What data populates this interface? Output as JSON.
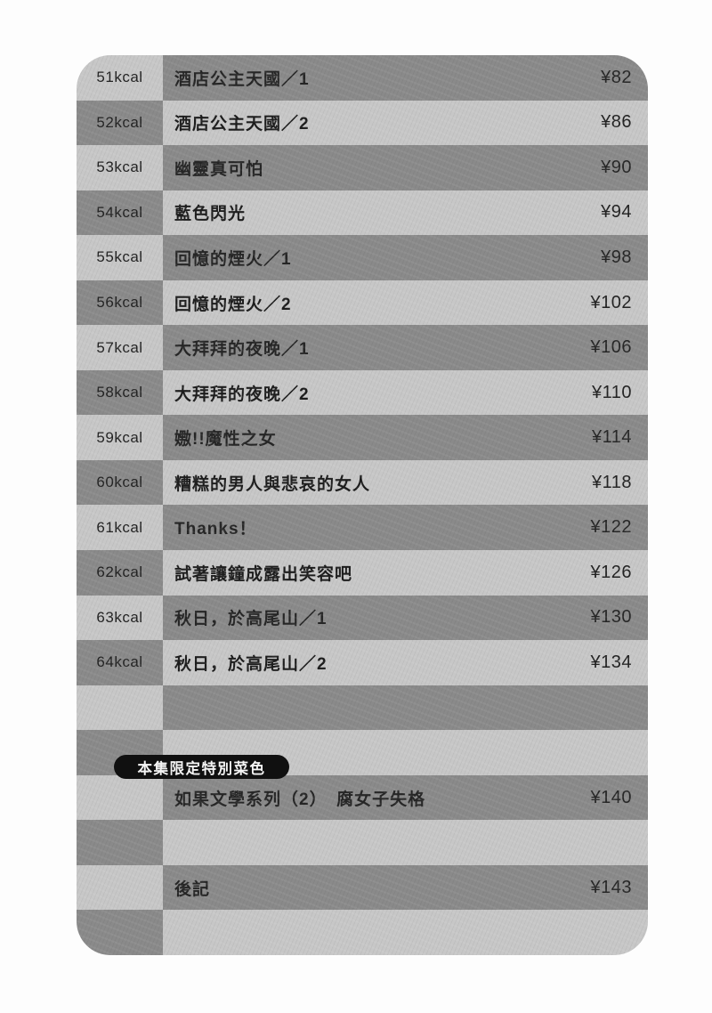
{
  "colors": {
    "stripe_dark": "#8a8a8a",
    "stripe_light": "#c7c7c7",
    "badge_bg": "#101010",
    "badge_text": "#f4f4f4",
    "text": "#1d1d1d",
    "page_bg": "#fdfdfd"
  },
  "badge": {
    "label": "本集限定特別菜色"
  },
  "toc": {
    "rows": [
      {
        "kcal": "51kcal",
        "title": "酒店公主天國／1",
        "page": "¥82"
      },
      {
        "kcal": "52kcal",
        "title": "酒店公主天國／2",
        "page": "¥86"
      },
      {
        "kcal": "53kcal",
        "title": "幽靈真可怕",
        "page": "¥90"
      },
      {
        "kcal": "54kcal",
        "title": "藍色閃光",
        "page": "¥94"
      },
      {
        "kcal": "55kcal",
        "title": "回憶的煙火／1",
        "page": "¥98"
      },
      {
        "kcal": "56kcal",
        "title": "回憶的煙火／2",
        "page": "¥102"
      },
      {
        "kcal": "57kcal",
        "title": "大拜拜的夜晚／1",
        "page": "¥106"
      },
      {
        "kcal": "58kcal",
        "title": "大拜拜的夜晚／2",
        "page": "¥110"
      },
      {
        "kcal": "59kcal",
        "title": "嫐!!魔性之女",
        "page": "¥114"
      },
      {
        "kcal": "60kcal",
        "title": "糟糕的男人與悲哀的女人",
        "page": "¥118"
      },
      {
        "kcal": "61kcal",
        "title": "Thanks！",
        "page": "¥122"
      },
      {
        "kcal": "62kcal",
        "title": "試著讓鐘成露出笑容吧",
        "page": "¥126"
      },
      {
        "kcal": "63kcal",
        "title": "秋日，於高尾山／1",
        "page": "¥130"
      },
      {
        "kcal": "64kcal",
        "title": "秋日，於高尾山／2",
        "page": "¥134"
      },
      {
        "kcal": "",
        "title": "",
        "page": ""
      },
      {
        "kcal": "",
        "title": "",
        "page": ""
      },
      {
        "kcal": "",
        "title": "如果文學系列（2）　腐女子失格",
        "page": "¥140"
      },
      {
        "kcal": "",
        "title": "",
        "page": ""
      },
      {
        "kcal": "",
        "title": "後記",
        "page": "¥143"
      },
      {
        "kcal": "",
        "title": "",
        "page": ""
      }
    ]
  }
}
